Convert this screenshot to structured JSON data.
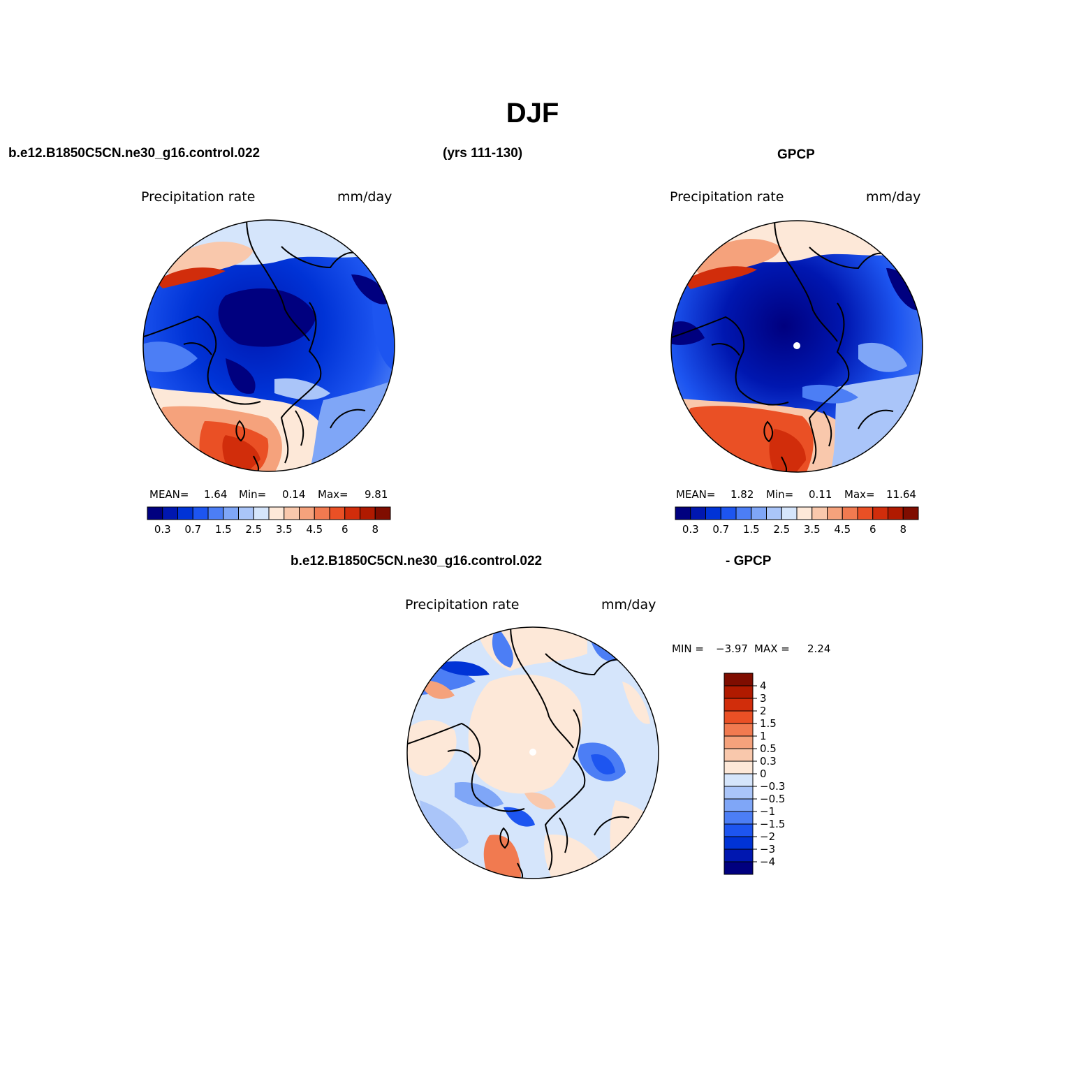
{
  "figure": {
    "title": "DJF",
    "case_name": "b.e12.B1850C5CN.ne30_g16.control.022",
    "years": "(yrs 111-130)",
    "obs_name": "GPCP",
    "diff_case_name": "b.e12.B1850C5CN.ne30_g16.control.022",
    "diff_obs_name": "- GPCP"
  },
  "panels": {
    "model": {
      "variable": "Precipitation rate",
      "units": "mm/day",
      "mean_label": "MEAN=",
      "mean": "1.64",
      "min_label": "Min=",
      "min": "0.14",
      "max_label": "Max=",
      "max": "9.81"
    },
    "obs": {
      "variable": "Precipitation rate",
      "units": "mm/day",
      "mean_label": "MEAN=",
      "mean": "1.82",
      "min_label": "Min=",
      "min": "0.11",
      "max_label": "Max=",
      "max": "11.64"
    },
    "diff": {
      "variable": "Precipitation rate",
      "units": "mm/day",
      "min_label": "MIN =",
      "min": "−3.97",
      "max_label": "MAX =",
      "max": "2.24"
    }
  },
  "colorbars": {
    "abs": {
      "colors": [
        "#00007f",
        "#0017b0",
        "#0033d6",
        "#1d55f0",
        "#4c7ef5",
        "#7fa6f7",
        "#aac5f9",
        "#d5e5fb",
        "#fde8d8",
        "#f9c8ac",
        "#f5a27c",
        "#f17a50",
        "#ea5025",
        "#d12d0b",
        "#b01a00",
        "#7f0d00"
      ],
      "labels": [
        "0.3",
        "0.7",
        "1.5",
        "2.5",
        "3.5",
        "4.5",
        "6",
        "8"
      ]
    },
    "diff": {
      "colors": [
        "#00007f",
        "#0017b0",
        "#0033d6",
        "#1d55f0",
        "#4c7ef5",
        "#7fa6f7",
        "#aac5f9",
        "#d5e5fb",
        "#fde8d8",
        "#f9c8ac",
        "#f5a27c",
        "#f17a50",
        "#ea5025",
        "#d12d0b",
        "#b01a00",
        "#7f0d00"
      ],
      "labels": [
        "−4",
        "−3",
        "−2",
        "−1.5",
        "−1",
        "−0.5",
        "−0.3",
        "0",
        "0.3",
        "0.5",
        "1",
        "1.5",
        "2",
        "3",
        "4"
      ]
    }
  },
  "colors": {
    "polar_dot": "#ffffff",
    "coastline": "#000000"
  }
}
